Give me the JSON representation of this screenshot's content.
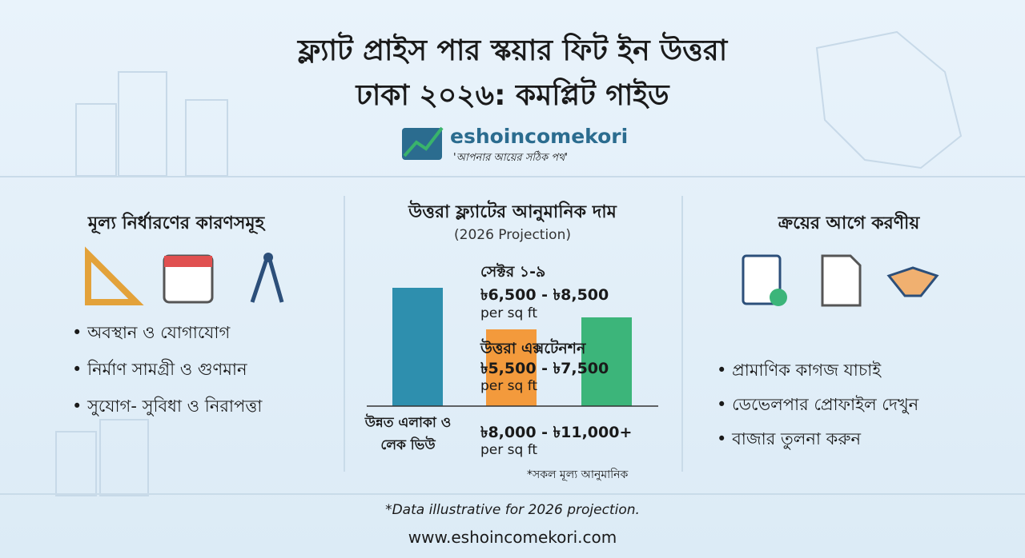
{
  "header": {
    "title_line1": "ফ্ল্যাট প্রাইস পার স্কয়ার ফিট ইন উত্তরা",
    "title_line2": "ঢাকা ২০২৬: কমপ্লিট গাইড",
    "brand": "eshoincomekori",
    "tagline": "'আপনার আয়ের সঠিক পথ'"
  },
  "left": {
    "heading": "মূল্য নির্ধারণের কারণসমূহ",
    "items": [
      "অবস্থান ও যোগাযোগ",
      "নির্মাণ সামগ্রী ও গুণমান",
      "সুযোগ- সুবিধা ও নিরাপত্তা"
    ]
  },
  "center": {
    "heading": "উত্তরা ফ্ল্যাটের আনুমানিক দাম",
    "subheading": "(2026 Projection)",
    "ranges": [
      {
        "label": "সেক্টর ১-৯",
        "price": "৳6,500 - ৳8,500",
        "unit": "per sq ft"
      },
      {
        "label": "উত্তরা এক্সটেনশন",
        "price": "৳5,500 - ৳7,500",
        "unit": "per sq ft"
      },
      {
        "label": "উন্নত এলাকা ও লেক ভিউ",
        "price": "৳8,000 - ৳11,000+",
        "unit": "per sq ft"
      }
    ],
    "note": "*সকল মূল্য আনুমানিক"
  },
  "right": {
    "heading": "ক্রয়ের আগে করণীয়",
    "items": [
      "প্রামাণিক কাগজ যাচাই",
      "ডেভেলপার প্রোফাইল দেখুন",
      "বাজার তুলনা করুন"
    ]
  },
  "footer": {
    "note": "*Data illustrative for 2026 projection.",
    "url": "www.eshoincomekori.com"
  }
}
